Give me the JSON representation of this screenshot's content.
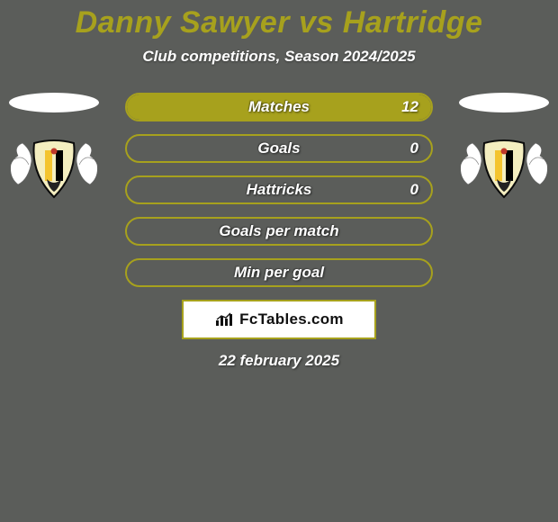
{
  "title": "Danny Sawyer vs Hartridge",
  "subtitle": "Club competitions, Season 2024/2025",
  "accent": "#a7a11d",
  "title_color": "#a7a11d",
  "subtitle_color": "#ffffff",
  "background": "#5b5d5a",
  "stats": [
    {
      "label": "Matches",
      "value": "12",
      "fill_pct": 100
    },
    {
      "label": "Goals",
      "value": "0",
      "fill_pct": 0
    },
    {
      "label": "Hattricks",
      "value": "0",
      "fill_pct": 0
    },
    {
      "label": "Goals per match",
      "value": "",
      "fill_pct": 0
    },
    {
      "label": "Min per goal",
      "value": "",
      "fill_pct": 0
    }
  ],
  "brand": "FcTables.com",
  "date": "22 february 2025",
  "crest": {
    "bg": "#ffffff",
    "shield_fill": "#f4eec0",
    "shield_stroke": "#0b0b0b",
    "stripe_left": "#f4c430",
    "stripe_right": "#000000"
  }
}
